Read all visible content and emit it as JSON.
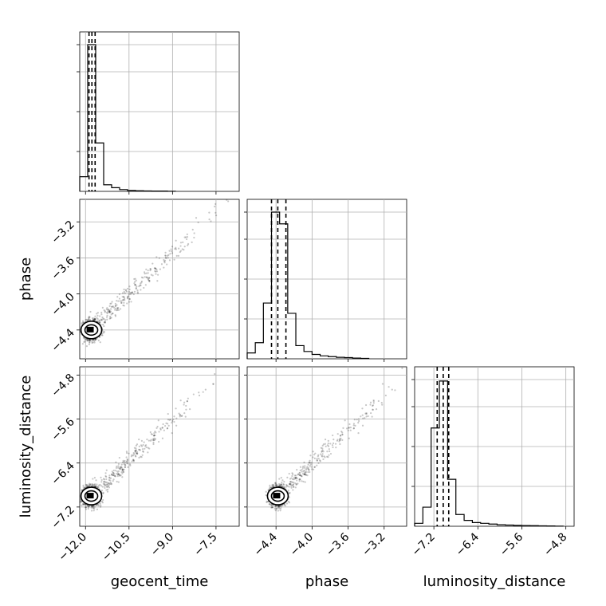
{
  "chart_data": {
    "type": "corner",
    "parameters": [
      "geocent_time",
      "phase",
      "luminosity_distance"
    ],
    "axis_labels": {
      "geocent_time": "geocent_time",
      "phase": "phase",
      "luminosity_distance": "luminosity_distance"
    },
    "ticks": {
      "geocent_time": [
        "−12.0",
        "−10.5",
        "−9.0",
        "−7.5"
      ],
      "phase": [
        "−4.4",
        "−4.0",
        "−3.6",
        "−3.2"
      ],
      "luminosity_distance": [
        "−7.2",
        "−6.4",
        "−5.6",
        "−4.8"
      ]
    },
    "tick_values": {
      "geocent_time": [
        -12.0,
        -10.5,
        -9.0,
        -7.5
      ],
      "phase": [
        -4.4,
        -4.0,
        -3.6,
        -3.2
      ],
      "luminosity_distance": [
        -7.2,
        -6.4,
        -5.6,
        -4.8
      ]
    },
    "ranges": {
      "geocent_time": [
        -12.2,
        -6.7
      ],
      "phase": [
        -4.72,
        -2.95
      ],
      "luminosity_distance": [
        -7.55,
        -4.65
      ]
    },
    "quantiles_dashed": {
      "geocent_time": [
        -11.88,
        -11.78,
        -11.67
      ],
      "phase": [
        -4.45,
        -4.38,
        -4.29
      ],
      "luminosity_distance": [
        -7.14,
        -7.03,
        -6.93
      ]
    },
    "histograms": {
      "geocent_time": {
        "edges": [
          -12.2,
          -11.925,
          -11.65,
          -11.375,
          -11.1,
          -10.825,
          -10.55,
          -10.275,
          -10.0,
          -9.725,
          -9.45,
          -9.175,
          -8.9
        ],
        "counts": [
          0.1,
          1.0,
          0.33,
          0.045,
          0.025,
          0.012,
          0.006,
          0.004,
          0.003,
          0.002,
          0.002,
          0.001
        ]
      },
      "phase": {
        "edges": [
          -4.72,
          -4.63,
          -4.54,
          -4.45,
          -4.36,
          -4.27,
          -4.18,
          -4.09,
          -4.0,
          -3.91,
          -3.82,
          -3.73,
          -3.64,
          -3.55,
          -3.46,
          -3.37
        ],
        "counts": [
          0.04,
          0.11,
          0.38,
          1.0,
          0.92,
          0.31,
          0.09,
          0.05,
          0.03,
          0.02,
          0.015,
          0.01,
          0.008,
          0.005,
          0.003
        ]
      },
      "luminosity_distance": {
        "edges": [
          -7.55,
          -7.4,
          -7.25,
          -7.1,
          -6.95,
          -6.8,
          -6.65,
          -6.5,
          -6.35,
          -6.2,
          -6.05,
          -5.9,
          -5.75,
          -5.6,
          -5.45,
          -5.3,
          -5.15,
          -5.0,
          -4.85
        ],
        "counts": [
          0.02,
          0.13,
          0.67,
          0.99,
          0.32,
          0.08,
          0.04,
          0.025,
          0.02,
          0.015,
          0.01,
          0.008,
          0.006,
          0.005,
          0.004,
          0.003,
          0.002,
          0.001
        ]
      }
    },
    "correlation": {
      "geocent_time__phase": {
        "x_center": -11.8,
        "y_center": -4.4,
        "slope": 0.26
      },
      "geocent_time__luminosity_distance": {
        "x_center": -11.8,
        "y_center": -7.0,
        "slope": 0.45
      },
      "phase__luminosity_distance": {
        "x_center": -4.38,
        "y_center": -7.0,
        "slope": 1.6
      }
    },
    "grid": true
  }
}
